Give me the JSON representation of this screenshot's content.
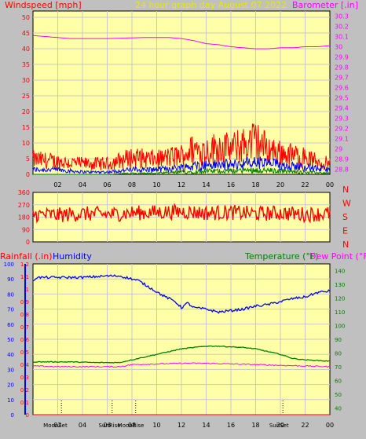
{
  "colors": {
    "background": "#c0c0c0",
    "plot_bg": "#ffffa8",
    "grid": "#c8c8c8",
    "wind_max": "#ff0000",
    "wind_avg": "#0000ff",
    "wind_low": "#008000",
    "barometer": "#ff00ff",
    "direction": "#ff0000",
    "rain": "#ff0000",
    "humidity": "#0000ff",
    "temperature": "#008000",
    "dew_point": "#ff00ff",
    "title": "#e8e800"
  },
  "chart_data": [
    {
      "type": "line",
      "title": "24 hour graph day   August 07 2022",
      "left_axis_label": "Windspeed [mph]",
      "right_axis_label": "Barometer [.in]",
      "x_tick_labels": [
        "02",
        "04",
        "06",
        "08",
        "10",
        "12",
        "14",
        "16",
        "18",
        "20",
        "22",
        "00"
      ],
      "x_range_hours": [
        0,
        24
      ],
      "y_left_ticks": [
        0,
        5,
        10,
        15,
        20,
        25,
        30,
        35,
        40,
        45,
        50
      ],
      "y_left_range": [
        0,
        50
      ],
      "y_right_ticks": [
        "28.8",
        "28.9",
        "29",
        "29.1",
        "29.2",
        "29.3",
        "29.4",
        "29.5",
        "29.6",
        "29.7",
        "29.8",
        "29.9",
        "30",
        "30.1",
        "30.2",
        "30.3"
      ],
      "y_right_range": [
        28.75,
        30.35
      ],
      "grid": true,
      "series": [
        {
          "name": "Barometer",
          "axis": "right",
          "x": [
            0,
            1,
            3,
            6,
            9,
            11,
            12,
            13,
            14,
            15,
            16,
            17,
            18,
            19,
            20,
            21,
            22,
            23,
            24
          ],
          "values": [
            30.11,
            30.1,
            30.08,
            30.08,
            30.09,
            30.09,
            30.08,
            30.06,
            30.03,
            30.02,
            30.0,
            29.99,
            29.98,
            29.98,
            29.99,
            29.99,
            30.0,
            30.0,
            30.01
          ]
        },
        {
          "name": "Wind max",
          "axis": "left",
          "x": [
            0,
            2,
            4,
            6,
            8,
            10,
            12,
            13,
            14,
            15,
            16,
            17,
            18,
            19,
            20,
            21,
            22,
            23,
            24
          ],
          "values": [
            7,
            6,
            5,
            5,
            8,
            7,
            9,
            12,
            11,
            13,
            12,
            14,
            16,
            12,
            10,
            9,
            8,
            6,
            5
          ]
        },
        {
          "name": "Wind average",
          "axis": "left",
          "x": [
            0,
            2,
            4,
            6,
            8,
            10,
            12,
            14,
            16,
            18,
            20,
            22,
            24
          ],
          "values": [
            2,
            2,
            1,
            1,
            2,
            2,
            3,
            4,
            4,
            5,
            4,
            3,
            2
          ]
        },
        {
          "name": "Wind low",
          "axis": "left",
          "x": [
            0,
            2,
            4,
            6,
            8,
            10,
            12,
            14,
            16,
            18,
            20,
            22,
            24
          ],
          "values": [
            0,
            0,
            0,
            0,
            0.5,
            0.5,
            1,
            1.5,
            1.5,
            2,
            1.5,
            1,
            0.5
          ]
        }
      ]
    },
    {
      "type": "line",
      "y_left_ticks": [
        0,
        90,
        180,
        270,
        360
      ],
      "y_left_range": [
        0,
        360
      ],
      "right_labels": [
        "N",
        "W",
        "S",
        "E",
        "N"
      ],
      "x_range_hours": [
        0,
        24
      ],
      "grid": true,
      "series": [
        {
          "name": "Wind direction",
          "x": [
            0,
            2,
            4,
            6,
            8,
            10,
            12,
            14,
            16,
            18,
            20,
            22,
            24
          ],
          "values": [
            200,
            195,
            205,
            200,
            210,
            215,
            220,
            210,
            215,
            205,
            210,
            200,
            205
          ]
        }
      ]
    },
    {
      "type": "line",
      "left_axis_label_1": "Rainfall (.in)",
      "left_axis_label_2": "Humidity",
      "right_axis_label_1": "Temperature (°F)",
      "right_axis_label_2": "Dew Point (°F)",
      "x_tick_labels": [
        "02",
        "04",
        "06",
        "08",
        "10",
        "12",
        "14",
        "16",
        "18",
        "20",
        "22",
        "00"
      ],
      "x_range_hours": [
        0,
        24
      ],
      "humidity_ticks": [
        0,
        10,
        20,
        30,
        40,
        50,
        60,
        70,
        80,
        90,
        100
      ],
      "rain_ticks": [
        "0",
        "0.1",
        "0.2",
        "0.3",
        "0.4",
        "0.5",
        "0.6",
        "0.7",
        "0.8",
        "0.9",
        "1",
        "1.1",
        "1.2"
      ],
      "rain_range": [
        0,
        1.2
      ],
      "temp_ticks": [
        40,
        50,
        60,
        70,
        80,
        90,
        100,
        110,
        120,
        130,
        140
      ],
      "temp_range": [
        35,
        145
      ],
      "grid": true,
      "markers": [
        {
          "label": "Moon Set",
          "hour": 2.3
        },
        {
          "label": "Sun Rise",
          "hour": 6.4
        },
        {
          "label": "Moon Rise",
          "hour": 8.3
        },
        {
          "label": "Sun Set",
          "hour": 20.2
        }
      ],
      "series": [
        {
          "name": "Humidity",
          "axis": "humidity",
          "x": [
            0,
            0.3,
            2,
            4,
            6,
            7,
            8.5,
            9.5,
            10.5,
            11.5,
            12,
            12.5,
            13,
            14,
            15,
            16,
            17,
            18,
            19,
            20,
            21,
            22,
            23,
            24
          ],
          "values": [
            89,
            91,
            91,
            91,
            92,
            92,
            89,
            84,
            79,
            75,
            71,
            74,
            71,
            70,
            68,
            69,
            70,
            72,
            73,
            75,
            77,
            78,
            81,
            82
          ]
        },
        {
          "name": "Temperature",
          "axis": "temp",
          "x": [
            0,
            1,
            3,
            5,
            6,
            7,
            8,
            9,
            10,
            11,
            12,
            13,
            14,
            15,
            16,
            17,
            18,
            19,
            20,
            21,
            22,
            23,
            24
          ],
          "values": [
            73.5,
            73.5,
            73.5,
            73,
            73,
            73,
            75,
            77,
            79,
            81,
            83,
            84,
            85,
            85,
            84.5,
            84,
            83,
            81,
            79,
            76,
            75,
            74.5,
            74
          ]
        },
        {
          "name": "Dew Point",
          "axis": "temp",
          "x": [
            0,
            2,
            4,
            6,
            7,
            8,
            10,
            12,
            14,
            16,
            18,
            20,
            22,
            24
          ],
          "values": [
            70.5,
            70,
            70,
            70,
            70,
            71.5,
            72,
            72.5,
            72.5,
            72,
            71.5,
            71,
            70.5,
            70
          ]
        },
        {
          "name": "Rainfall",
          "axis": "rain",
          "x": [
            0,
            24
          ],
          "values": [
            0,
            0
          ]
        }
      ]
    }
  ]
}
